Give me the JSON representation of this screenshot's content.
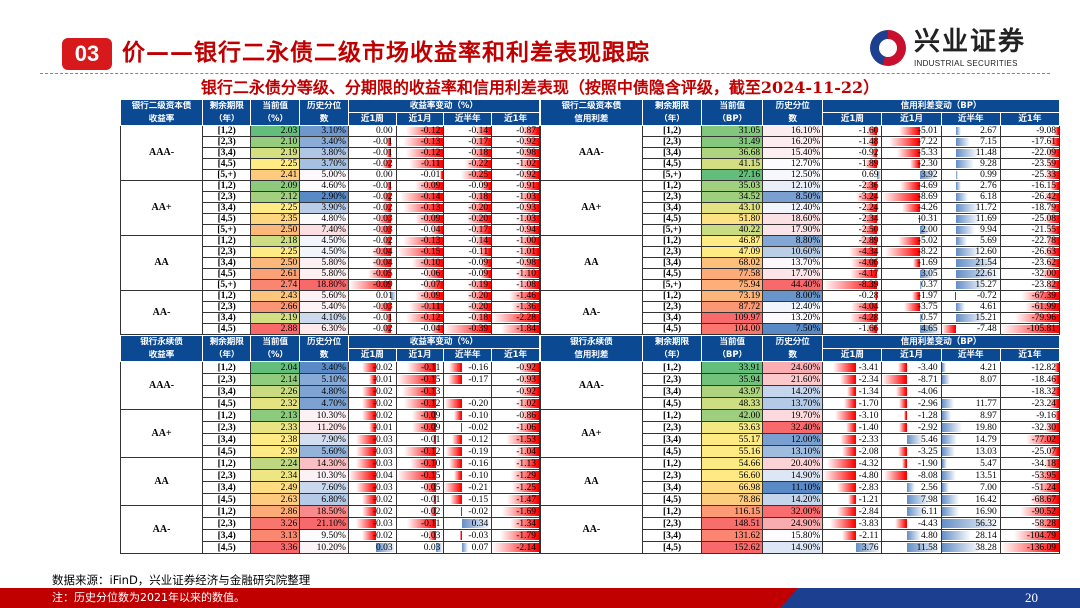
{
  "header": {
    "section_number": "03",
    "title": "价——银行二永债二级市场收益率和利差表现跟踪",
    "subtitle": "银行二永债分等级、分期限的收益率和信用利差表现（按照中债隐含评级，截至2024-11-22）",
    "logo_cn": "兴业证券",
    "logo_en": "INDUSTRIAL SECURITIES"
  },
  "colors": {
    "title_red": "#c00000",
    "header_blue": "#0b4a93",
    "neg_bar": "#ff0000",
    "pos_bar": "#638ec6",
    "scale_low": "#63be7b",
    "scale_mid": "#ffeb84",
    "scale_high": "#f8696b",
    "pct_low": "#5a8ac6",
    "pct_mid": "#fcfcff",
    "pct_high": "#f8696b"
  },
  "tables": [
    {
      "h1": "银行二级资本债",
      "h2": "收益率",
      "period_h": "剩余期限",
      "period_u": "（年）",
      "cur_h": "当前值",
      "cur_u": "（%）",
      "pct_h": "历史分位",
      "pct_u": "数",
      "chg_h": "收益率变动（%）",
      "cols": [
        "近1周",
        "近1月",
        "近半年",
        "近1年"
      ],
      "groups": [
        {
          "grade": "AAA-",
          "rows": [
            [
              "[1,2)",
              "2.03",
              "3.10%",
              "0.00",
              "-0.12",
              "-0.14",
              "-0.87"
            ],
            [
              "[2,3)",
              "2.10",
              "3.40%",
              "-0.01",
              "-0.13",
              "-0.17",
              "-0.92"
            ],
            [
              "[3,4)",
              "2.19",
              "3.80%",
              "-0.01",
              "-0.12",
              "-0.18",
              "-0.98"
            ],
            [
              "[4,5)",
              "2.25",
              "3.70%",
              "-0.02",
              "-0.11",
              "-0.22",
              "-1.02"
            ],
            [
              "[5,+)",
              "2.41",
              "5.00%",
              "0.00",
              "-0.01",
              "-0.25",
              "-0.92"
            ]
          ]
        },
        {
          "grade": "AA+",
          "rows": [
            [
              "[1,2)",
              "2.09",
              "4.60%",
              "-0.01",
              "-0.09",
              "-0.09",
              "-0.91"
            ],
            [
              "[2,3)",
              "2.12",
              "2.90%",
              "-0.02",
              "-0.14",
              "-0.18",
              "-1.03"
            ],
            [
              "[3,4)",
              "2.25",
              "3.90%",
              "-0.02",
              "-0.13",
              "-0.20",
              "-0.93"
            ],
            [
              "[4,5)",
              "2.35",
              "4.80%",
              "-0.03",
              "-0.09",
              "-0.20",
              "-1.03"
            ],
            [
              "[5,+)",
              "2.50",
              "7.40%",
              "-0.03",
              "-0.04",
              "-0.17",
              "-0.94"
            ]
          ]
        },
        {
          "grade": "AA",
          "rows": [
            [
              "[1,2)",
              "2.18",
              "4.50%",
              "-0.02",
              "-0.13",
              "-0.14",
              "-1.00"
            ],
            [
              "[2,3)",
              "2.25",
              "4.50%",
              "-0.04",
              "-0.15",
              "-0.11",
              "-1.01"
            ],
            [
              "[3,4)",
              "2.50",
              "5.80%",
              "-0.04",
              "-0.10",
              "-0.09",
              "-0.98"
            ],
            [
              "[4,5)",
              "2.61",
              "5.80%",
              "-0.05",
              "-0.06",
              "-0.09",
              "-1.10"
            ],
            [
              "[5,+)",
              "2.74",
              "18.80%",
              "-0.09",
              "-0.07",
              "-0.19",
              "-1.08"
            ]
          ]
        },
        {
          "grade": "AA-",
          "rows": [
            [
              "[1,2)",
              "2.43",
              "5.60%",
              "0.01",
              "-0.09",
              "-0.20",
              "-1.46"
            ],
            [
              "[2,3)",
              "2.66",
              "5.40%",
              "-0.03",
              "-0.11",
              "-0.20",
              "-1.36"
            ],
            [
              "[3,4)",
              "2.19",
              "4.10%",
              "-0.01",
              "-0.12",
              "-0.18",
              "-2.28"
            ],
            [
              "[4,5)",
              "2.88",
              "6.30%",
              "-0.02",
              "-0.04",
              "-0.39",
              "-1.84"
            ]
          ]
        }
      ]
    },
    {
      "h1": "银行二级资本债",
      "h2": "信用利差",
      "period_h": "剩余期限",
      "period_u": "（年）",
      "cur_h": "当前值",
      "cur_u": "（BP）",
      "pct_h": "历史分位",
      "pct_u": "数",
      "chg_h": "信用利差变动（BP）",
      "cols": [
        "近1周",
        "近1月",
        "近半年",
        "近1年"
      ],
      "groups": [
        {
          "grade": "AAA-",
          "rows": [
            [
              "[1,2)",
              "31.05",
              "16.10%",
              "-1.60",
              "-5.01",
              "2.67",
              "-9.08"
            ],
            [
              "[2,3)",
              "31.49",
              "16.20%",
              "-1.48",
              "-7.22",
              "7.15",
              "-17.61"
            ],
            [
              "[3,4)",
              "36.68",
              "15.40%",
              "-0.92",
              "-5.33",
              "11.48",
              "-22.09"
            ],
            [
              "[4,5)",
              "41.15",
              "12.70%",
              "-1.89",
              "-2.30",
              "9.28",
              "-23.59"
            ],
            [
              "[5,+)",
              "27.16",
              "12.50%",
              "0.69",
              "3.92",
              "0.99",
              "-25.33"
            ]
          ]
        },
        {
          "grade": "AA+",
          "rows": [
            [
              "[1,2)",
              "35.03",
              "12.10%",
              "-2.36",
              "-4.69",
              "2.76",
              "-16.15"
            ],
            [
              "[2,3)",
              "34.52",
              "8.50%",
              "-3.24",
              "-8.69",
              "6.18",
              "-26.42"
            ],
            [
              "[3,4)",
              "43.10",
              "12.40%",
              "-2.24",
              "-4.26",
              "11.72",
              "-18.79"
            ],
            [
              "[4,5)",
              "51.80",
              "18.60%",
              "-2.34",
              "-0.31",
              "11.69",
              "-25.08"
            ],
            [
              "[5,+)",
              "40.22",
              "17.90%",
              "-2.50",
              "2.00",
              "9.94",
              "-21.55"
            ]
          ]
        },
        {
          "grade": "AA",
          "rows": [
            [
              "[1,2)",
              "46.87",
              "8.80%",
              "-2.89",
              "-5.02",
              "5.69",
              "-22.78"
            ],
            [
              "[2,3)",
              "47.09",
              "10.60%",
              "-4.34",
              "-8.22",
              "12.60",
              "-26.63"
            ],
            [
              "[3,4)",
              "68.02",
              "13.70%",
              "-4.06",
              "-1.69",
              "21.54",
              "-23.62"
            ],
            [
              "[4,5)",
              "77.58",
              "17.70%",
              "-4.17",
              "3.05",
              "22.61",
              "-32.00"
            ],
            [
              "[5,+)",
              "75.94",
              "44.40%",
              "-8.39",
              "0.37",
              "15.27",
              "-23.82"
            ]
          ]
        },
        {
          "grade": "AA-",
          "rows": [
            [
              "[1,2)",
              "73.19",
              "8.00%",
              "-0.28",
              "-1.97",
              "-0.72",
              "-67.39"
            ],
            [
              "[2,3)",
              "87.72",
              "12.40%",
              "-4.04",
              "-3.75",
              "4.61",
              "-61.99"
            ],
            [
              "[3,4)",
              "109.97",
              "13.20%",
              "-4.28",
              "0.57",
              "15.21",
              "-79.96"
            ],
            [
              "[4,5)",
              "104.00",
              "7.50%",
              "-1.66",
              "4.65",
              "-7.48",
              "-105.81"
            ]
          ]
        }
      ]
    },
    {
      "h1": "银行永续债",
      "h2": "收益率",
      "period_h": "剩余期限",
      "period_u": "（年）",
      "cur_h": "当前值",
      "cur_u": "（%）",
      "pct_h": "历史分位",
      "pct_u": "数",
      "chg_h": "收益率变动（%）",
      "cols": [
        "近1周",
        "近1月",
        "近半年",
        "近1年"
      ],
      "groups": [
        {
          "grade": "AAA-",
          "rows": [
            [
              "[1,2)",
              "2.04",
              "3.40%",
              "-0.02",
              "-0.11",
              "-0.16",
              "-0.92"
            ],
            [
              "[2,3)",
              "2.14",
              "5.10%",
              "-0.01",
              "-0.15",
              "-0.17",
              "-0.93"
            ],
            [
              "[3,4)",
              "2.26",
              "4.80%",
              "-0.02",
              "-0.13",
              "",
              "-0.92"
            ],
            [
              "[4,5)",
              "2.32",
              "4.70%",
              "-0.02",
              "-0.12",
              "-0.20",
              "-1.02"
            ]
          ]
        },
        {
          "grade": "AA+",
          "rows": [
            [
              "[1,2)",
              "2.13",
              "10.30%",
              "-0.02",
              "-0.09",
              "-0.10",
              "-0.86"
            ],
            [
              "[2,3)",
              "2.33",
              "11.20%",
              "-0.01",
              "-0.09",
              "-0.02",
              "-1.06"
            ],
            [
              "[3,4)",
              "2.38",
              "7.90%",
              "-0.03",
              "-0.01",
              "-0.12",
              "-1.53"
            ],
            [
              "[4,5)",
              "2.39",
              "5.60%",
              "-0.03",
              "-0.12",
              "-0.19",
              "-1.04"
            ]
          ]
        },
        {
          "grade": "AA",
          "rows": [
            [
              "[1,2)",
              "2.24",
              "14.30%",
              "-0.03",
              "-0.10",
              "-0.16",
              "-1.13"
            ],
            [
              "[2,3)",
              "2.34",
              "10.30%",
              "-0.04",
              "-0.15",
              "-0.10",
              "-1.29"
            ],
            [
              "[3,4)",
              "2.49",
              "7.60%",
              "-0.03",
              "-0.05",
              "-0.21",
              "-1.25"
            ],
            [
              "[4,5)",
              "2.63",
              "6.80%",
              "-0.02",
              "-0.01",
              "-0.15",
              "-1.47"
            ]
          ]
        },
        {
          "grade": "AA-",
          "rows": [
            [
              "[1,2)",
              "2.86",
              "18.50%",
              "-0.02",
              "-0.02",
              "-0.02",
              "-1.69"
            ],
            [
              "[2,3)",
              "3.26",
              "21.10%",
              "-0.03",
              "-0.11",
              "0.34",
              "-1.34"
            ],
            [
              "[3,4)",
              "3.13",
              "9.50%",
              "-0.02",
              "-0.03",
              "-0.03",
              "-1.79"
            ],
            [
              "[4,5)",
              "3.36",
              "10.20%",
              "0.03",
              "0.03",
              "0.07",
              "-2.14"
            ]
          ]
        }
      ]
    },
    {
      "h1": "银行永续债",
      "h2": "信用利差",
      "period_h": "剩余期限",
      "period_u": "（年）",
      "cur_h": "当前值",
      "cur_u": "（BP）",
      "pct_h": "历史分位",
      "pct_u": "数",
      "chg_h": "信用利差变动（BP）",
      "cols": [
        "近1周",
        "近1月",
        "近半年",
        "近1年"
      ],
      "groups": [
        {
          "grade": "AAA-",
          "rows": [
            [
              "[1,2)",
              "33.91",
              "24.60%",
              "-3.41",
              "-3.40",
              "4.21",
              "-12.82"
            ],
            [
              "[2,3)",
              "35.94",
              "21.60%",
              "-2.34",
              "-8.71",
              "8.07",
              "-18.46"
            ],
            [
              "[3,4)",
              "43.97",
              "14.20%",
              "-1.34",
              "-4.06",
              "",
              "-18.32"
            ],
            [
              "[4,5)",
              "48.33",
              "13.70%",
              "-1.70",
              "-2.96",
              "11.77",
              "-23.24"
            ]
          ]
        },
        {
          "grade": "AA+",
          "rows": [
            [
              "[1,2)",
              "42.00",
              "19.70%",
              "-3.10",
              "-1.28",
              "8.97",
              "-9.16"
            ],
            [
              "[2,3)",
              "53.63",
              "32.40%",
              "-1.40",
              "-2.92",
              "19.80",
              "-32.30"
            ],
            [
              "[3,4)",
              "55.17",
              "12.00%",
              "-2.33",
              "5.46",
              "14.79",
              "-77.02"
            ],
            [
              "[4,5)",
              "55.16",
              "13.10%",
              "-2.08",
              "-3.25",
              "13.03",
              "-25.07"
            ]
          ]
        },
        {
          "grade": "AA",
          "rows": [
            [
              "[1,2)",
              "54.66",
              "20.40%",
              "-4.32",
              "-1.90",
              "5.47",
              "-34.18"
            ],
            [
              "[2,3)",
              "56.60",
              "14.90%",
              "-4.80",
              "-8.08",
              "13.51",
              "-53.95"
            ],
            [
              "[3,4)",
              "66.98",
              "11.10%",
              "-2.83",
              "2.56",
              "7.00",
              "-51.24"
            ],
            [
              "[4,5)",
              "78.86",
              "14.20%",
              "-1.21",
              "7.98",
              "16.42",
              "-68.67"
            ]
          ]
        },
        {
          "grade": "AA-",
          "rows": [
            [
              "[1,2)",
              "116.15",
              "32.00%",
              "-2.84",
              "6.11",
              "16.90",
              "-90.52"
            ],
            [
              "[2,3)",
              "148.51",
              "24.90%",
              "-3.83",
              "-4.43",
              "56.32",
              "-58.28"
            ],
            [
              "[3,4)",
              "131.62",
              "15.80%",
              "-2.11",
              "4.80",
              "28.14",
              "-104.79"
            ],
            [
              "[4,5)",
              "152.62",
              "14.90%",
              "3.76",
              "11.58",
              "38.28",
              "-136.09"
            ]
          ]
        }
      ]
    }
  ],
  "footer": {
    "source": "数据来源：iFinD，兴业证券经济与金融研究院整理",
    "note": "注：历史分位数为2021年以来的数值。",
    "page": "20"
  }
}
